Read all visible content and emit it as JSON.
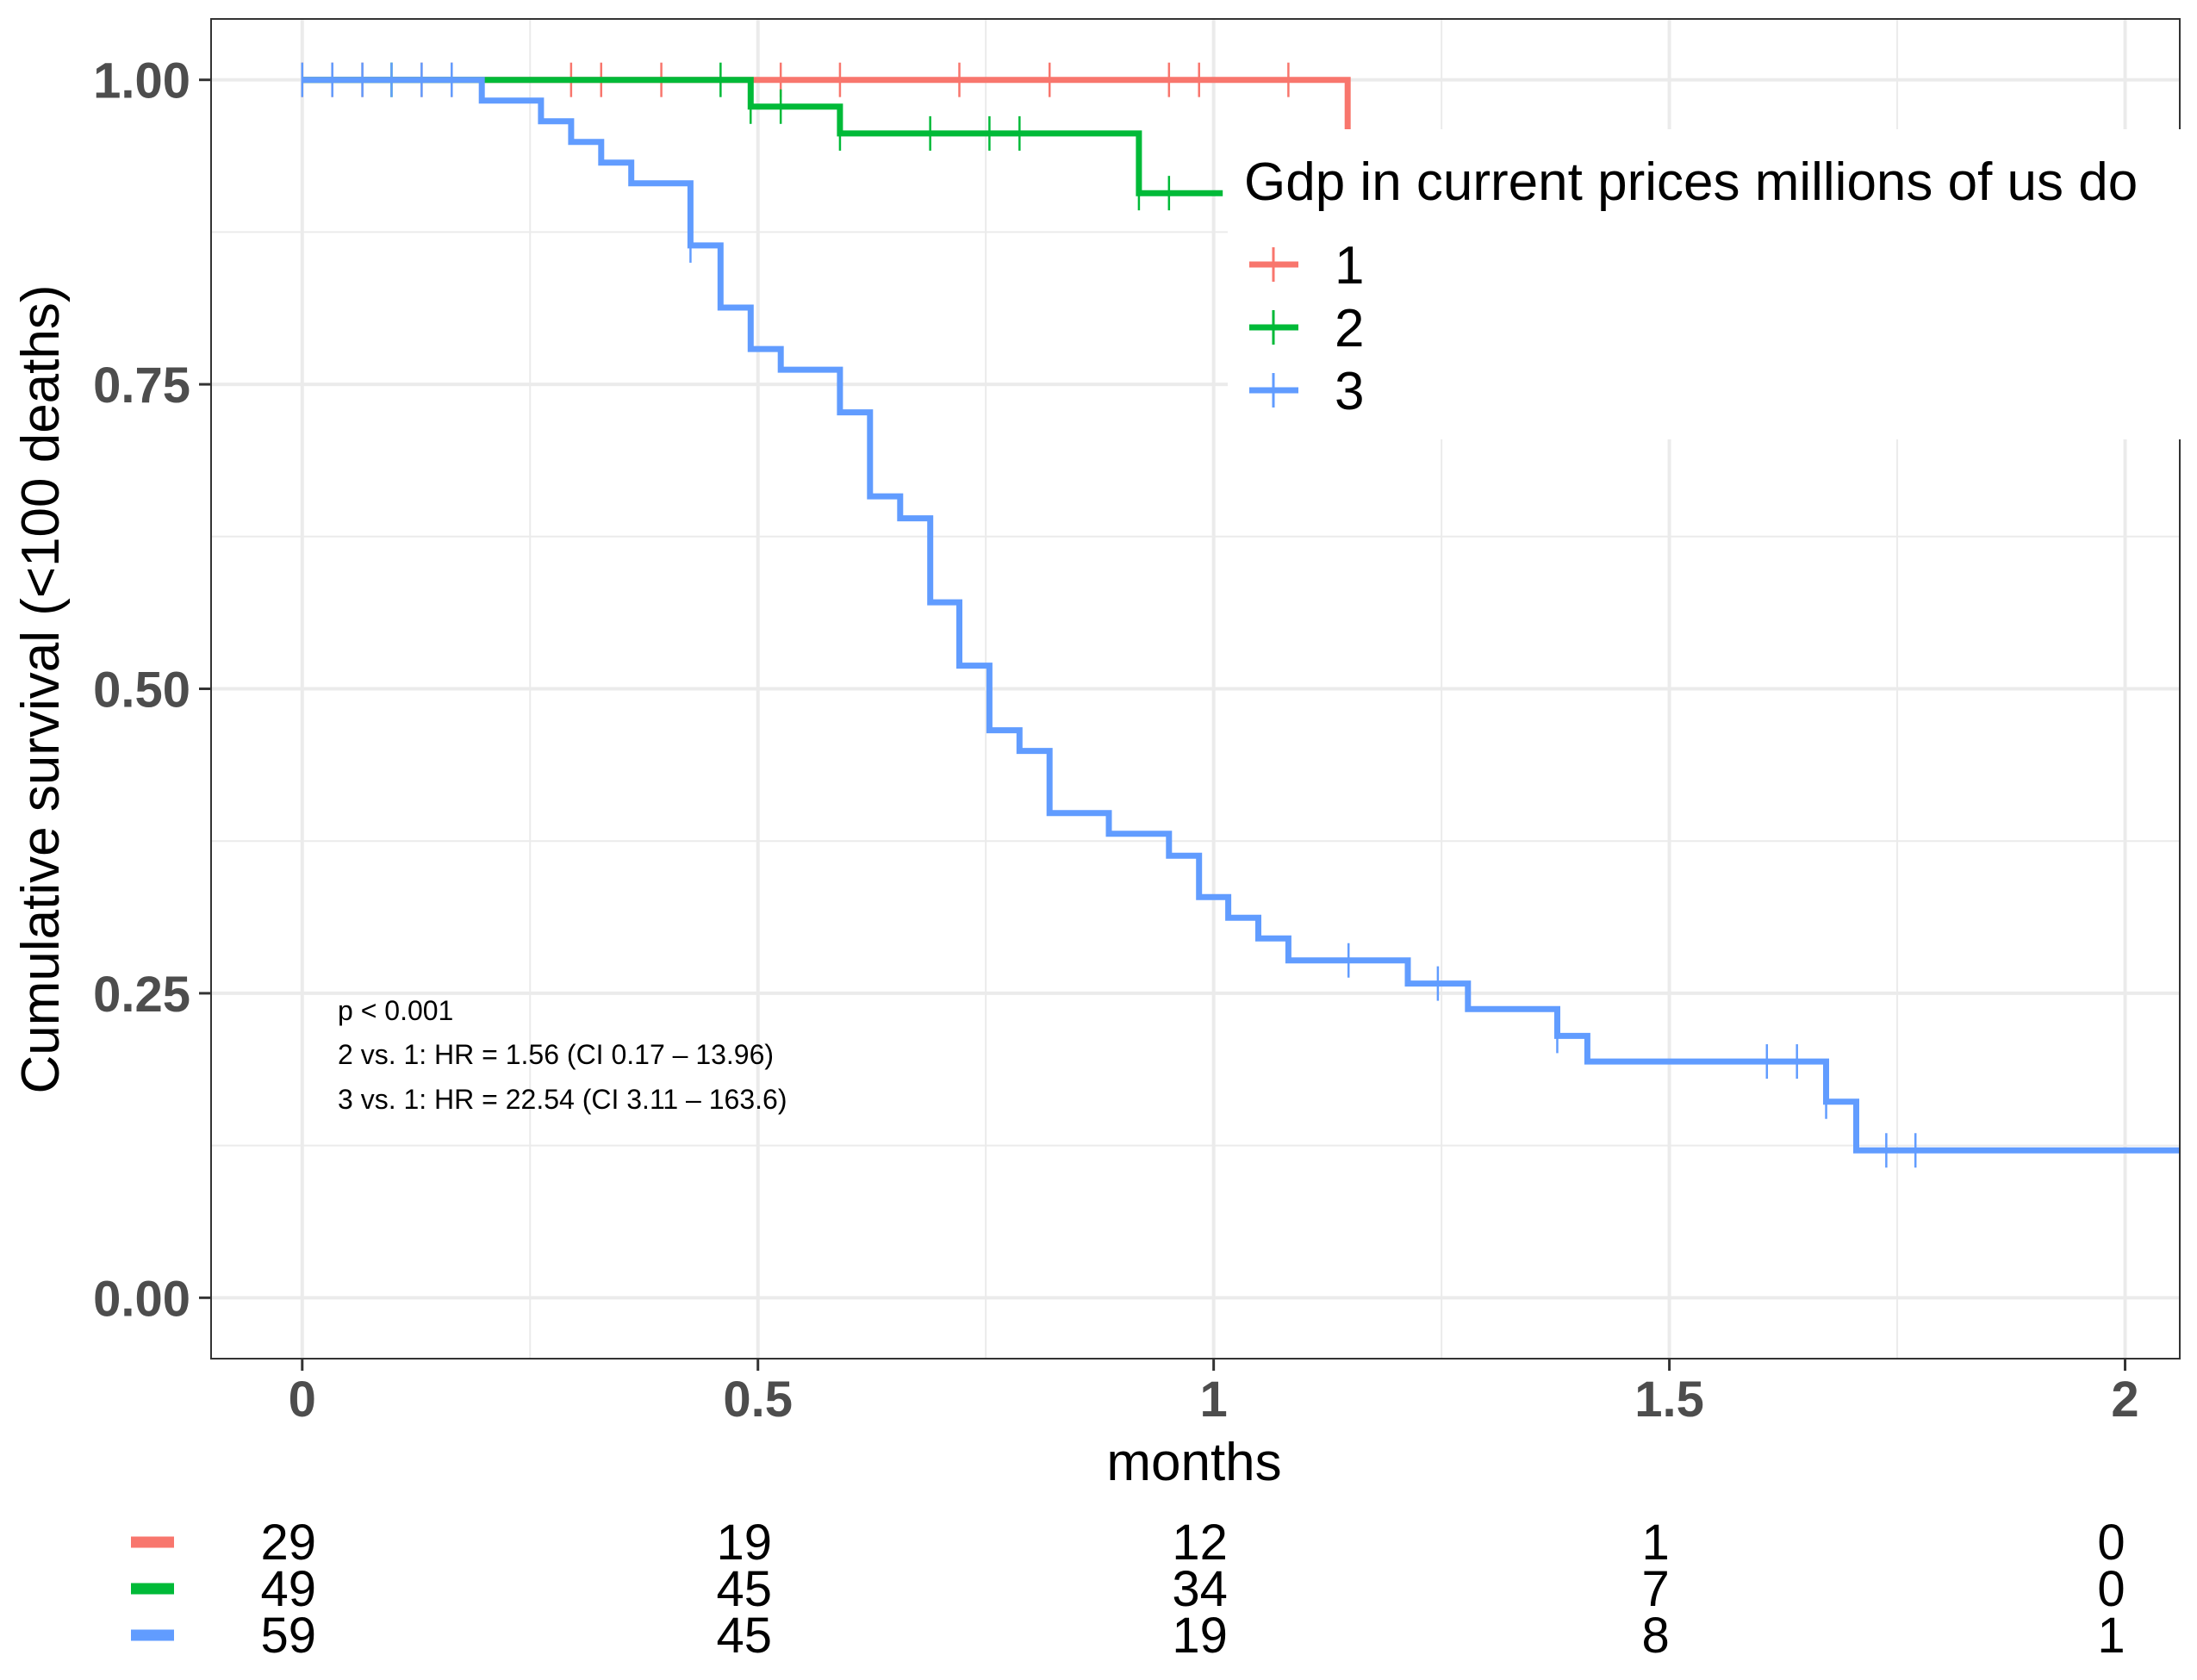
{
  "chart_data": {
    "type": "line",
    "subtype": "kaplan-meier",
    "xlabel": "months",
    "ylabel": "Cumulative survival (<100 deaths)",
    "xlim": [
      -0.1,
      2.06
    ],
    "ylim": [
      -0.05,
      1.05
    ],
    "x_ticks": [
      0,
      0.5,
      1,
      1.5,
      2
    ],
    "x_tick_labels": [
      "0",
      "0.5",
      "1",
      "1.5",
      "2"
    ],
    "y_ticks": [
      0,
      0.25,
      0.5,
      0.75,
      1
    ],
    "y_tick_labels": [
      "0.00",
      "0.25",
      "0.50",
      "0.75",
      "1.00"
    ],
    "grid": true,
    "legend": {
      "title": "Gdp in current prices millions of us do",
      "position": "top-right",
      "entries": [
        "1",
        "2",
        "3"
      ]
    },
    "annotations": [
      "p < 0.001",
      "2 vs. 1: HR = 1.56 (CI 0.17 – 13.96)",
      "3 vs. 1: HR = 22.54 (CI 3.11 – 163.6)"
    ],
    "series": [
      {
        "name": "1",
        "color": "#F8766D",
        "x": [
          0,
          1.147,
          1.147
        ],
        "y": [
          1.0,
          1.0,
          0.95
        ],
        "censor_x": [
          0.0,
          0.033,
          0.066,
          0.131,
          0.164,
          0.295,
          0.328,
          0.394,
          0.525,
          0.59,
          0.721,
          0.82,
          0.951,
          0.984,
          1.082
        ]
      },
      {
        "name": "2",
        "color": "#00BA38",
        "x": [
          0,
          0.492,
          0.492,
          0.59,
          0.59,
          0.918,
          0.918,
          1.01
        ],
        "y": [
          1.0,
          1.0,
          0.978,
          0.978,
          0.956,
          0.956,
          0.907,
          0.907
        ],
        "censor_x": [
          0.098,
          0.459,
          0.492,
          0.525,
          0.59,
          0.689,
          0.754,
          0.787,
          0.918,
          0.951
        ]
      },
      {
        "name": "3",
        "color": "#619CFF",
        "x": [
          0,
          0.197,
          0.197,
          0.262,
          0.262,
          0.295,
          0.295,
          0.328,
          0.328,
          0.361,
          0.361,
          0.426,
          0.426,
          0.459,
          0.459,
          0.492,
          0.492,
          0.525,
          0.525,
          0.59,
          0.59,
          0.623,
          0.623,
          0.656,
          0.656,
          0.689,
          0.689,
          0.721,
          0.721,
          0.754,
          0.754,
          0.787,
          0.787,
          0.82,
          0.82,
          0.885,
          0.885,
          0.951,
          0.951,
          0.984,
          0.984,
          1.016,
          1.016,
          1.049,
          1.049,
          1.082,
          1.082,
          1.213,
          1.213,
          1.279,
          1.279,
          1.377,
          1.377,
          1.41,
          1.41,
          1.672,
          1.672,
          1.705,
          1.705,
          2.06
        ],
        "y": [
          1.0,
          1.0,
          0.983,
          0.983,
          0.966,
          0.966,
          0.949,
          0.949,
          0.932,
          0.932,
          0.915,
          0.915,
          0.864,
          0.864,
          0.813,
          0.813,
          0.779,
          0.779,
          0.762,
          0.762,
          0.727,
          0.727,
          0.658,
          0.658,
          0.64,
          0.64,
          0.571,
          0.571,
          0.519,
          0.519,
          0.466,
          0.466,
          0.449,
          0.449,
          0.398,
          0.398,
          0.381,
          0.381,
          0.363,
          0.363,
          0.329,
          0.329,
          0.312,
          0.312,
          0.295,
          0.295,
          0.277,
          0.277,
          0.258,
          0.258,
          0.237,
          0.237,
          0.215,
          0.215,
          0.194,
          0.194,
          0.161,
          0.161,
          0.121,
          0.121
        ],
        "censor_x": [
          0.0,
          0.033,
          0.066,
          0.098,
          0.131,
          0.164,
          0.426,
          1.148,
          1.246,
          1.377,
          1.607,
          1.64,
          1.672,
          1.738,
          1.77
        ]
      }
    ],
    "risk_table": {
      "times": [
        0,
        0.5,
        1,
        1.5,
        2
      ],
      "rows": [
        {
          "name": "1",
          "color": "#F8766D",
          "values": [
            "29",
            "19",
            "12",
            "1",
            "0"
          ]
        },
        {
          "name": "2",
          "color": "#00BA38",
          "values": [
            "49",
            "45",
            "34",
            "7",
            "0"
          ]
        },
        {
          "name": "3",
          "color": "#619CFF",
          "values": [
            "59",
            "45",
            "19",
            "8",
            "1"
          ]
        }
      ]
    }
  }
}
